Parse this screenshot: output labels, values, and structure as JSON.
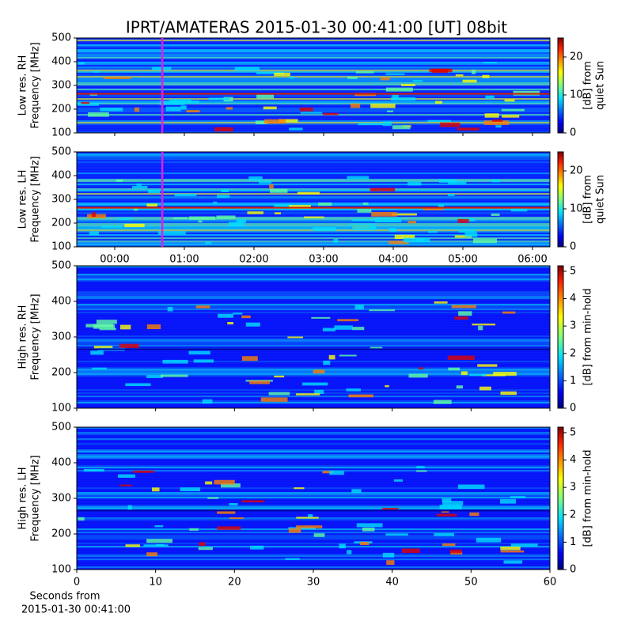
{
  "chart_data": [
    {
      "type": "heatmap",
      "title": "IPRT/AMATERAS 2015-01-30 00:41:00 [UT]   08bit",
      "ylabel": [
        "Low res. RH",
        "Frequency [MHz]"
      ],
      "ylim": [
        100,
        500
      ],
      "yticks": [
        100,
        200,
        300,
        400,
        500
      ],
      "xlim": [
        -0.545,
        6.25
      ],
      "xticks": [
        0,
        1,
        2,
        3,
        4,
        5,
        6
      ],
      "colorbar": {
        "label": [
          "[dB] from",
          "quiet Sun"
        ],
        "lim": [
          0,
          25
        ],
        "ticks": [
          0,
          10,
          20
        ]
      },
      "vline": {
        "x": 0.683,
        "color": "#e020e0"
      }
    },
    {
      "type": "heatmap",
      "ylabel": [
        "Low res. LH",
        "Frequency [MHz]"
      ],
      "ylim": [
        100,
        500
      ],
      "yticks": [
        100,
        200,
        300,
        400,
        500
      ],
      "xlim": [
        -0.545,
        6.25
      ],
      "xticks": [
        {
          "value": 0,
          "label": "00:00"
        },
        {
          "value": 1,
          "label": "01:00"
        },
        {
          "value": 2,
          "label": "02:00"
        },
        {
          "value": 3,
          "label": "03:00"
        },
        {
          "value": 4,
          "label": "04:00"
        },
        {
          "value": 5,
          "label": "05:00"
        },
        {
          "value": 6,
          "label": "06:00"
        }
      ],
      "colorbar": {
        "label": [
          "[dB] from",
          "quiet Sun"
        ],
        "lim": [
          0,
          25
        ],
        "ticks": [
          0,
          10,
          20
        ]
      },
      "vline": {
        "x": 0.683,
        "color": "#e020e0"
      }
    },
    {
      "type": "heatmap",
      "ylabel": [
        "High res. RH",
        "Frequency [MHz]"
      ],
      "ylim": [
        100,
        500
      ],
      "yticks": [
        100,
        200,
        300,
        400,
        500
      ],
      "xlim": [
        0,
        60
      ],
      "xticks": [
        0,
        10,
        20,
        30,
        40,
        50,
        60
      ],
      "colorbar": {
        "label": [
          "[dB] from min-hold"
        ],
        "lim": [
          0,
          5.2
        ],
        "ticks": [
          0,
          1,
          2,
          3,
          4,
          5
        ]
      }
    },
    {
      "type": "heatmap",
      "ylabel": [
        "High res. LH",
        "Frequency [MHz]"
      ],
      "ylim": [
        100,
        500
      ],
      "yticks": [
        100,
        200,
        300,
        400,
        500
      ],
      "xlim": [
        0,
        60
      ],
      "xticks": [
        0,
        10,
        20,
        30,
        40,
        50,
        60
      ],
      "xlabel": [
        "Seconds from",
        "2015-01-30 00:41:00"
      ],
      "colorbar": {
        "label": [
          "[dB] from min-hold"
        ],
        "lim": [
          0,
          5.2
        ],
        "ticks": [
          0,
          1,
          2,
          3,
          4,
          5
        ]
      }
    }
  ]
}
